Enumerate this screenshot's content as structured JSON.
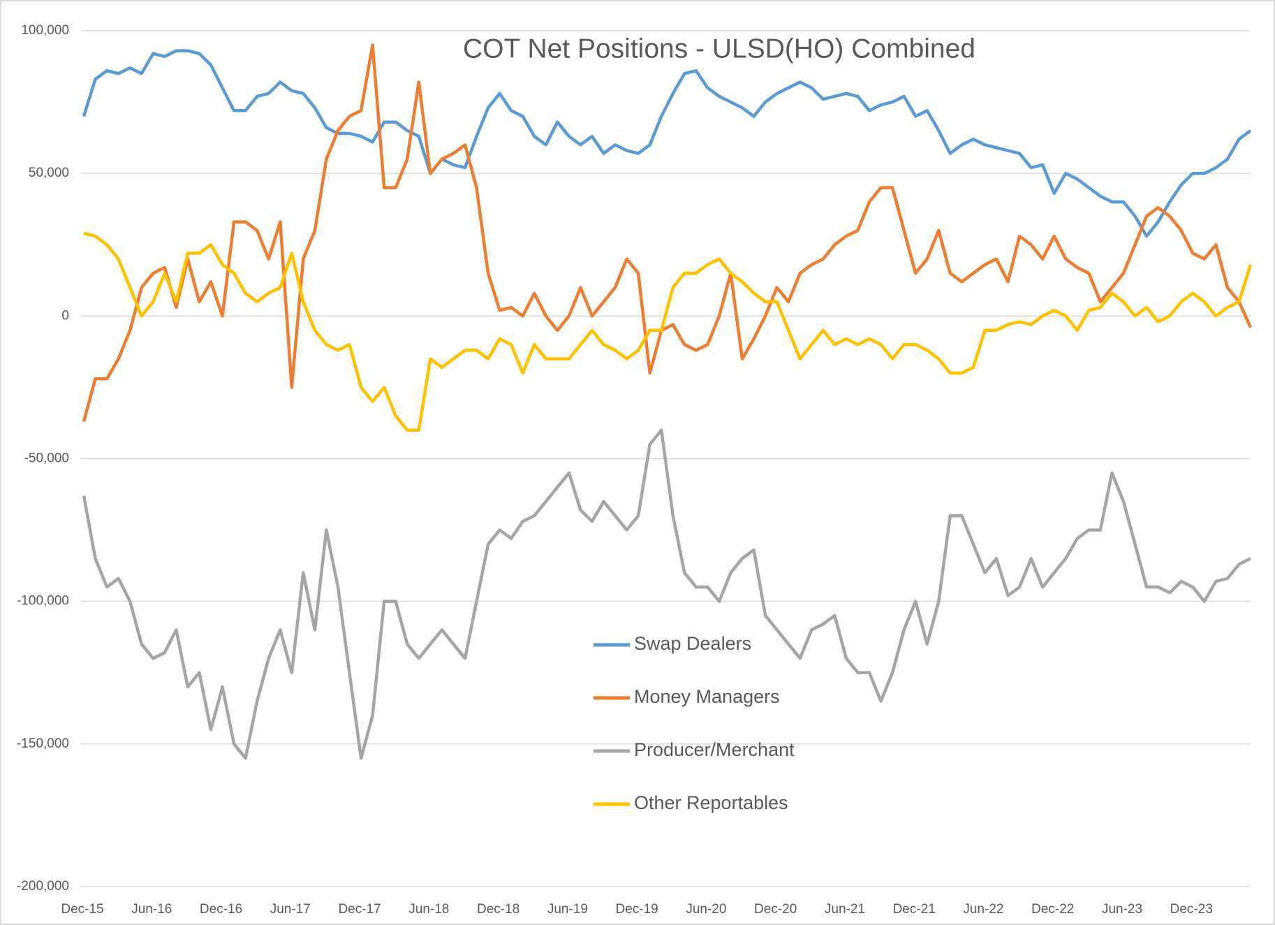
{
  "chart_data": {
    "type": "line",
    "title": "COT Net Positions - ULSD(HO) Combined",
    "categories": [
      "Dec-15",
      null,
      null,
      null,
      null,
      null,
      "Jun-16",
      null,
      null,
      null,
      null,
      null,
      "Dec-16",
      null,
      null,
      null,
      null,
      null,
      "Jun-17",
      null,
      null,
      null,
      null,
      null,
      "Dec-17",
      null,
      null,
      null,
      null,
      null,
      "Jun-18",
      null,
      null,
      null,
      null,
      null,
      "Dec-18",
      null,
      null,
      null,
      null,
      null,
      "Jun-19",
      null,
      null,
      null,
      null,
      null,
      "Dec-19",
      null,
      null,
      null,
      null,
      null,
      "Jun-20",
      null,
      null,
      null,
      null,
      null,
      "Dec-20",
      null,
      null,
      null,
      null,
      null,
      "Jun-21",
      null,
      null,
      null,
      null,
      null,
      "Dec-21",
      null,
      null,
      null,
      null,
      null,
      "Jun-22",
      null,
      null,
      null,
      null,
      null,
      "Dec-22",
      null,
      null,
      null,
      null,
      null,
      "Jun-23",
      null,
      null,
      null,
      null,
      null,
      "Dec-23",
      null,
      null,
      null,
      null,
      null
    ],
    "series": [
      {
        "name": "Swap Dealers",
        "color": "#5b9bd5",
        "values": [
          70000,
          83000,
          86000,
          85000,
          87000,
          85000,
          92000,
          91000,
          93000,
          93000,
          92000,
          88000,
          80000,
          72000,
          72000,
          77000,
          78000,
          82000,
          79000,
          78000,
          73000,
          66000,
          64000,
          64000,
          63000,
          61000,
          68000,
          68000,
          65000,
          63000,
          50000,
          55000,
          53000,
          52000,
          63000,
          73000,
          78000,
          72000,
          70000,
          63000,
          60000,
          68000,
          63000,
          60000,
          63000,
          57000,
          60000,
          58000,
          57000,
          60000,
          70000,
          78000,
          85000,
          86000,
          80000,
          77000,
          75000,
          73000,
          70000,
          75000,
          78000,
          80000,
          82000,
          80000,
          76000,
          77000,
          78000,
          77000,
          72000,
          74000,
          75000,
          77000,
          70000,
          72000,
          65000,
          57000,
          60000,
          62000,
          60000,
          59000,
          58000,
          57000,
          52000,
          53000,
          43000,
          50000,
          48000,
          45000,
          42000,
          40000,
          40000,
          35000,
          28000,
          33000,
          40000,
          46000,
          50000,
          50000,
          52000,
          55000,
          62000,
          65000
        ]
      },
      {
        "name": "Money Managers",
        "color": "#ed7d31",
        "values": [
          -37000,
          -22000,
          -22000,
          -15000,
          -5000,
          10000,
          15000,
          17000,
          3000,
          20000,
          5000,
          12000,
          0,
          33000,
          33000,
          30000,
          20000,
          33000,
          -25000,
          20000,
          30000,
          55000,
          65000,
          70000,
          72000,
          95000,
          45000,
          45000,
          55000,
          82000,
          50000,
          55000,
          57000,
          60000,
          45000,
          15000,
          2000,
          3000,
          0,
          8000,
          0,
          -5000,
          0,
          10000,
          0,
          5000,
          10000,
          20000,
          15000,
          -20000,
          -5000,
          -3000,
          -10000,
          -12000,
          -10000,
          0,
          15000,
          -15000,
          -8000,
          0,
          10000,
          5000,
          15000,
          18000,
          20000,
          25000,
          28000,
          30000,
          40000,
          45000,
          45000,
          30000,
          15000,
          20000,
          30000,
          15000,
          12000,
          15000,
          18000,
          20000,
          12000,
          28000,
          25000,
          20000,
          28000,
          20000,
          17000,
          15000,
          5000,
          10000,
          15000,
          25000,
          35000,
          38000,
          35000,
          30000,
          22000,
          20000,
          25000,
          10000,
          5000,
          -4000
        ]
      },
      {
        "name": "Producer/Merchant",
        "color": "#a5a5a5",
        "values": [
          -63000,
          -85000,
          -95000,
          -92000,
          -100000,
          -115000,
          -120000,
          -118000,
          -110000,
          -130000,
          -125000,
          -145000,
          -130000,
          -150000,
          -155000,
          -135000,
          -120000,
          -110000,
          -125000,
          -90000,
          -110000,
          -75000,
          -95000,
          -125000,
          -155000,
          -140000,
          -100000,
          -100000,
          -115000,
          -120000,
          -115000,
          -110000,
          -115000,
          -120000,
          -100000,
          -80000,
          -75000,
          -78000,
          -72000,
          -70000,
          -65000,
          -60000,
          -55000,
          -68000,
          -72000,
          -65000,
          -70000,
          -75000,
          -70000,
          -45000,
          -40000,
          -70000,
          -90000,
          -95000,
          -95000,
          -100000,
          -90000,
          -85000,
          -82000,
          -105000,
          -110000,
          -115000,
          -120000,
          -110000,
          -108000,
          -105000,
          -120000,
          -125000,
          -125000,
          -135000,
          -125000,
          -110000,
          -100000,
          -115000,
          -100000,
          -70000,
          -70000,
          -80000,
          -90000,
          -85000,
          -98000,
          -95000,
          -85000,
          -95000,
          -90000,
          -85000,
          -78000,
          -75000,
          -75000,
          -55000,
          -65000,
          -80000,
          -95000,
          -95000,
          -97000,
          -93000,
          -95000,
          -100000,
          -93000,
          -92000,
          -87000,
          -85000
        ]
      },
      {
        "name": "Other Reportables",
        "color": "#ffc000",
        "values": [
          29000,
          28000,
          25000,
          20000,
          10000,
          0,
          5000,
          15000,
          5000,
          22000,
          22000,
          25000,
          18000,
          15000,
          8000,
          5000,
          8000,
          10000,
          22000,
          5000,
          -5000,
          -10000,
          -12000,
          -10000,
          -25000,
          -30000,
          -25000,
          -35000,
          -40000,
          -40000,
          -15000,
          -18000,
          -15000,
          -12000,
          -12000,
          -15000,
          -8000,
          -10000,
          -20000,
          -10000,
          -15000,
          -15000,
          -15000,
          -10000,
          -5000,
          -10000,
          -12000,
          -15000,
          -12000,
          -5000,
          -5000,
          10000,
          15000,
          15000,
          18000,
          20000,
          15000,
          12000,
          8000,
          5000,
          5000,
          -5000,
          -15000,
          -10000,
          -5000,
          -10000,
          -8000,
          -10000,
          -8000,
          -10000,
          -15000,
          -10000,
          -10000,
          -12000,
          -15000,
          -20000,
          -20000,
          -18000,
          -5000,
          -5000,
          -3000,
          -2000,
          -3000,
          0,
          2000,
          0,
          -5000,
          2000,
          3000,
          8000,
          5000,
          0,
          3000,
          -2000,
          0,
          5000,
          8000,
          5000,
          0,
          3000,
          5000,
          18000
        ]
      }
    ],
    "ylim": [
      -200000,
      100000
    ],
    "yticks": [
      {
        "value": -200000,
        "label": "-200,000"
      },
      {
        "value": -150000,
        "label": "-150,000"
      },
      {
        "value": -100000,
        "label": "-100,000"
      },
      {
        "value": -50000,
        "label": "-50,000"
      },
      0,
      {
        "value": 50000,
        "label": "50,000"
      },
      {
        "value": 100000,
        "label": "100,000"
      }
    ],
    "grid": true
  }
}
